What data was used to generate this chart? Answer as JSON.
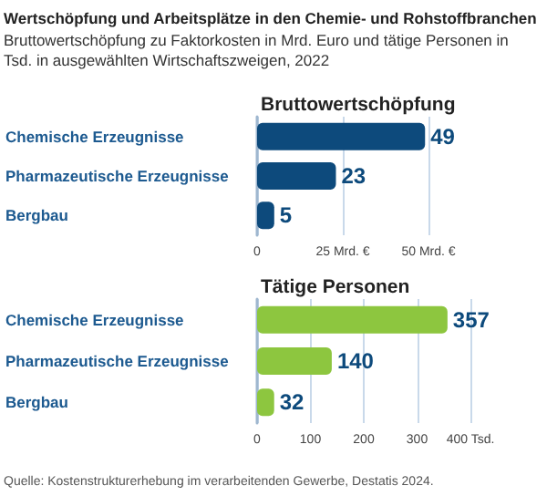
{
  "chart_data": [
    {
      "type": "other",
      "title": "Wertschöpfung und Arbeitsplätze in den Chemie- und Rohstoffbranchen",
      "subtitle": "Bruttowertschöpfung zu Faktorkosten in Mrd. Euro und tätige Personen in Tsd. in ausgewählten Wirtschaftszweigen, 2022"
    },
    {
      "type": "bar",
      "orientation": "horizontal",
      "title": "Bruttowertschöpfung",
      "categories": [
        "Chemische Erzeugnisse",
        "Pharmazeutische Erzeugnisse",
        "Bergbau"
      ],
      "values": [
        49,
        23,
        5
      ],
      "color": "#0d4a7c",
      "data_labels": true,
      "xlim": [
        0,
        50
      ],
      "xticks": [
        0,
        {
          "value": 25,
          "label": "25 Mrd. €"
        },
        {
          "value": 50,
          "label": "50 Mrd. €"
        }
      ],
      "grid": "x"
    },
    {
      "type": "bar",
      "orientation": "horizontal",
      "title": "Tätige Personen",
      "categories": [
        "Chemische Erzeugnisse",
        "Pharmazeutische Erzeugnisse",
        "Bergbau"
      ],
      "values": [
        357,
        140,
        32
      ],
      "color": "#8dc63f",
      "data_labels": true,
      "xlim": [
        0,
        400
      ],
      "xticks": [
        0,
        100,
        200,
        300,
        {
          "value": 400,
          "label": "400 Tsd."
        }
      ],
      "grid": "x",
      "annotations": [
        "Quelle: Kostenstrukturerhebung im verarbeitenden Gewerbe, Destatis 2024."
      ]
    }
  ]
}
